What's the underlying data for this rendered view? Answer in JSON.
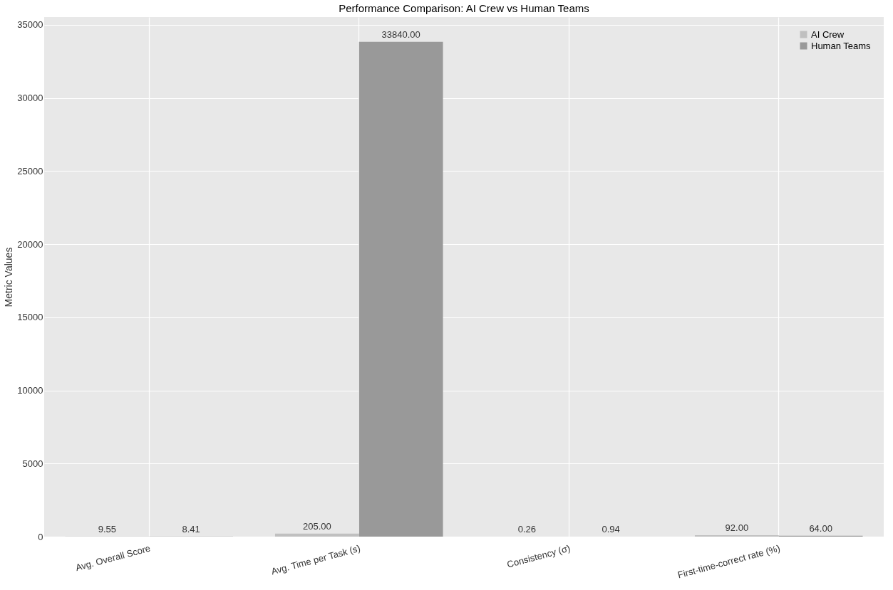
{
  "chart_data": {
    "type": "bar",
    "title": "Performance Comparison: AI Crew vs Human Teams",
    "ylabel": "Metric Values",
    "categories": [
      "Avg. Overall Score",
      "Avg. Time per Task (s)",
      "Consistency (σ)",
      "First-time-correct rate (%)"
    ],
    "series": [
      {
        "name": "AI Crew",
        "color": "#c0c0c0",
        "values": [
          9.55,
          205.0,
          0.26,
          92.0
        ],
        "value_labels": [
          "9.55",
          "205.00",
          "0.26",
          "92.00"
        ]
      },
      {
        "name": "Human Teams",
        "color": "#999999",
        "values": [
          8.41,
          33840.0,
          0.94,
          64.0
        ],
        "value_labels": [
          "8.41",
          "33840.00",
          "0.94",
          "64.00"
        ]
      }
    ],
    "ylim": [
      0,
      35530
    ],
    "yticks": [
      0,
      5000,
      10000,
      15000,
      20000,
      25000,
      30000,
      35000
    ],
    "grid": true,
    "legend": "top right"
  }
}
